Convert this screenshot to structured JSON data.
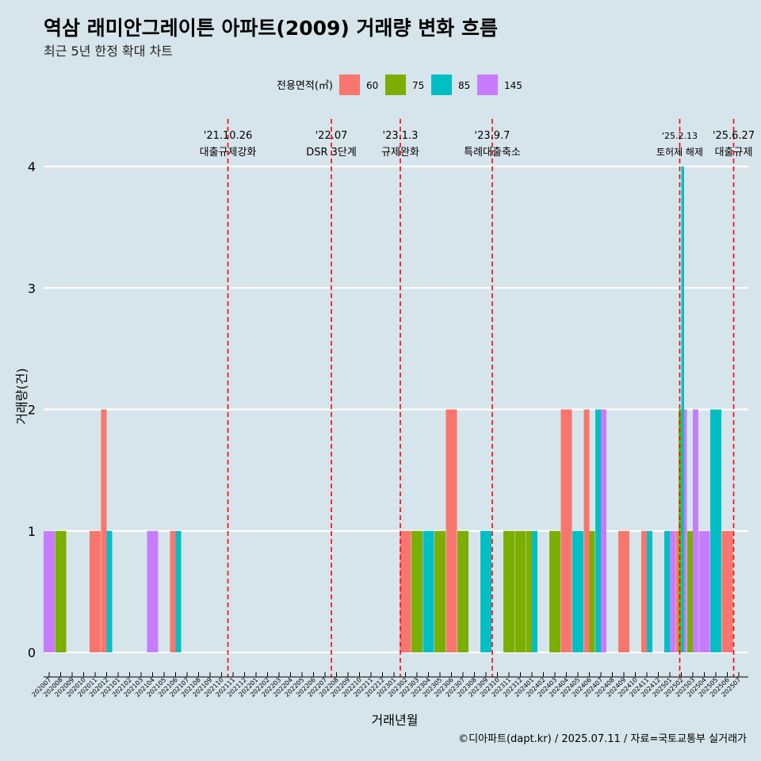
{
  "chart_data": {
    "type": "bar",
    "title": "역삼 래미안그레이튼 아파트(2009) 거래량 변화 흐름",
    "subtitle": "최근 5년 한정 확대 차트",
    "xlabel": "거래년월",
    "ylabel": "거래량(건)",
    "ylim": [
      0,
      4
    ],
    "yticks": [
      0,
      1,
      2,
      3,
      4
    ],
    "legend": {
      "title": "전용면적(㎡)",
      "placement": "top"
    },
    "caption": "©디아파트(dapt.kr) / 2025.07.11 / 자료=국토교통부 실거래가",
    "categories": [
      "202007",
      "202008",
      "202009",
      "202010",
      "202011",
      "202012",
      "202101",
      "202102",
      "202103",
      "202104",
      "202105",
      "202106",
      "202107",
      "202108",
      "202109",
      "202110",
      "202111",
      "202112",
      "202201",
      "202202",
      "202203",
      "202204",
      "202205",
      "202206",
      "202207",
      "202208",
      "202209",
      "202210",
      "202211",
      "202212",
      "202301",
      "202302",
      "202303",
      "202304",
      "202305",
      "202306",
      "202307",
      "202308",
      "202309",
      "202310",
      "202311",
      "202312",
      "202401",
      "202402",
      "202403",
      "202404",
      "202405",
      "202406",
      "202407",
      "202408",
      "202409",
      "202410",
      "202411",
      "202412",
      "202501",
      "202502",
      "202503",
      "202504",
      "202505",
      "202506",
      "202507"
    ],
    "series": [
      {
        "name": "60",
        "color": "#f8766d",
        "points": [
          [
            "202011",
            1
          ],
          [
            "202012",
            2
          ],
          [
            "202106",
            1
          ],
          [
            "202302",
            1
          ],
          [
            "202306",
            2
          ],
          [
            "202404",
            2
          ],
          [
            "202406",
            2
          ],
          [
            "202409",
            1
          ],
          [
            "202411",
            1
          ],
          [
            "202502",
            1
          ],
          [
            "202506",
            1
          ]
        ]
      },
      {
        "name": "75",
        "color": "#7cae00",
        "points": [
          [
            "202008",
            1
          ],
          [
            "202303",
            1
          ],
          [
            "202305",
            1
          ],
          [
            "202307",
            1
          ],
          [
            "202311",
            1
          ],
          [
            "202312",
            1
          ],
          [
            "202401",
            1
          ],
          [
            "202403",
            1
          ],
          [
            "202406",
            1
          ],
          [
            "202502",
            2
          ],
          [
            "202503",
            1
          ]
        ]
      },
      {
        "name": "85",
        "color": "#00bfc4",
        "points": [
          [
            "202012",
            1
          ],
          [
            "202106",
            1
          ],
          [
            "202304",
            1
          ],
          [
            "202309",
            1
          ],
          [
            "202401",
            1
          ],
          [
            "202405",
            1
          ],
          [
            "202407",
            2
          ],
          [
            "202411",
            1
          ],
          [
            "202501",
            1
          ],
          [
            "202502",
            4
          ],
          [
            "202505",
            2
          ]
        ]
      },
      {
        "name": "145",
        "color": "#c77cff",
        "points": [
          [
            "202007",
            1
          ],
          [
            "202104",
            1
          ],
          [
            "202407",
            2
          ],
          [
            "202501",
            1
          ],
          [
            "202502",
            2
          ],
          [
            "202503",
            2
          ],
          [
            "202504",
            1
          ]
        ]
      }
    ],
    "events": [
      {
        "category": "202110",
        "date": "'21.10.26",
        "label": "대출규제강화"
      },
      {
        "category": "202207",
        "date": "'22.07",
        "label": "DSR 3단계"
      },
      {
        "category": "202301",
        "date": "'23.1.3",
        "label": "규제완화"
      },
      {
        "category": "202309",
        "date": "'23.9.7",
        "label": "특례대출축소"
      },
      {
        "category": "202502",
        "date": "'25.2.13",
        "label": "토허제 해제"
      },
      {
        "category": "202506",
        "date": "'25.6.27",
        "label": "대출규제"
      }
    ],
    "grid": true,
    "background": "#d6e4eb",
    "event_line_color": "#ff0000"
  }
}
